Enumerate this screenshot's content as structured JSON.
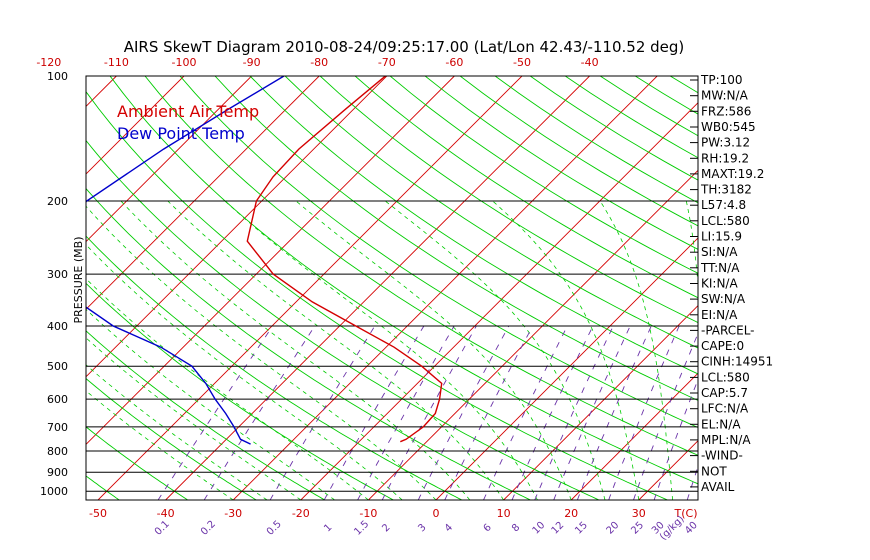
{
  "title": "AIRS SkewT Diagram 2010-08-24/09:25:17.00 (Lat/Lon 42.43/-110.52 deg)",
  "legend": {
    "ambient": "Ambient Air Temp",
    "dewpoint": "Dew Point Temp"
  },
  "colors": {
    "ambient": "#d40000",
    "dewpoint": "#0000cc",
    "isotherm": "#d40000",
    "dry_adiabat": "#00cc00",
    "moist_adiabat": "#00cc00",
    "mixing_ratio": "#6a32a8",
    "axis_text": "#cc0000",
    "frame": "#000000"
  },
  "ylabel": "PRESSURE (MB)",
  "stats": [
    "TP:100",
    "MW:N/A",
    "FRZ:586",
    "WB0:545",
    "PW:3.12",
    "RH:19.2",
    "MAXT:19.2",
    "TH:3182",
    "L57:4.8",
    "LCL:580",
    "LI:15.9",
    "SI:N/A",
    "TT:N/A",
    "KI:N/A",
    "SW:N/A",
    "EI:N/A",
    "-PARCEL-",
    "CAPE:0",
    "CINH:14951",
    "LCL:580",
    "CAP:5.7",
    "LFC:N/A",
    "EL:N/A",
    "MPL:N/A",
    "-WIND-",
    "NOT",
    "AVAIL"
  ],
  "chart_data": {
    "type": "line",
    "title": "AIRS SkewT Diagram 2010-08-24/09:25:17.00 (Lat/Lon 42.43/-110.52 deg)",
    "ylabel": "PRESSURE (MB)",
    "xlabel": "T(C)",
    "pressure_ticks": [
      100,
      200,
      300,
      400,
      500,
      600,
      700,
      800,
      900,
      1000
    ],
    "bottom_temp_ticks": [
      -50,
      -40,
      -30,
      -20,
      -10,
      0,
      10,
      20,
      30
    ],
    "top_temp_ticks": [
      -120,
      -110,
      -100,
      -90,
      -80,
      -70,
      -60,
      -50,
      -40
    ],
    "mixing_ratio_labels": [
      "0.1",
      "0.2",
      "0.5",
      "1",
      "1.5",
      "2",
      "3",
      "4",
      "6",
      "8",
      "10",
      "12",
      "15",
      "20",
      "25",
      "30",
      "40"
    ],
    "mixing_ratio_unit": "(g/kg)",
    "series": [
      {
        "name": "Ambient Air Temp",
        "points": [
          {
            "p": 100,
            "t": -70.2
          },
          {
            "p": 120,
            "t": -71.2
          },
          {
            "p": 150,
            "t": -72.2
          },
          {
            "p": 175,
            "t": -71.9
          },
          {
            "p": 200,
            "t": -70.8
          },
          {
            "p": 250,
            "t": -66.2
          },
          {
            "p": 300,
            "t": -57.5
          },
          {
            "p": 350,
            "t": -47.6
          },
          {
            "p": 400,
            "t": -37.6
          },
          {
            "p": 450,
            "t": -28.8
          },
          {
            "p": 500,
            "t": -21.9
          },
          {
            "p": 550,
            "t": -16.4
          },
          {
            "p": 600,
            "t": -14.4
          },
          {
            "p": 650,
            "t": -12.9
          },
          {
            "p": 700,
            "t": -12.7
          },
          {
            "p": 750,
            "t": -13.4
          },
          {
            "p": 760,
            "t": -13.9
          }
        ]
      },
      {
        "name": "Dew Point Temp",
        "points": [
          {
            "p": 100,
            "t": -85.2
          },
          {
            "p": 120,
            "t": -88.5
          },
          {
            "p": 150,
            "t": -92.2
          },
          {
            "p": 200,
            "t": -95.9
          },
          {
            "p": 250,
            "t": -94.2
          },
          {
            "p": 300,
            "t": -90.5
          },
          {
            "p": 350,
            "t": -82.2
          },
          {
            "p": 400,
            "t": -73.5
          },
          {
            "p": 450,
            "t": -63.3
          },
          {
            "p": 500,
            "t": -55.9
          },
          {
            "p": 550,
            "t": -51.3
          },
          {
            "p": 600,
            "t": -47.6
          },
          {
            "p": 650,
            "t": -43.9
          },
          {
            "p": 700,
            "t": -40.7
          },
          {
            "p": 750,
            "t": -37.9
          },
          {
            "p": 770,
            "t": -35.7
          }
        ]
      }
    ]
  }
}
